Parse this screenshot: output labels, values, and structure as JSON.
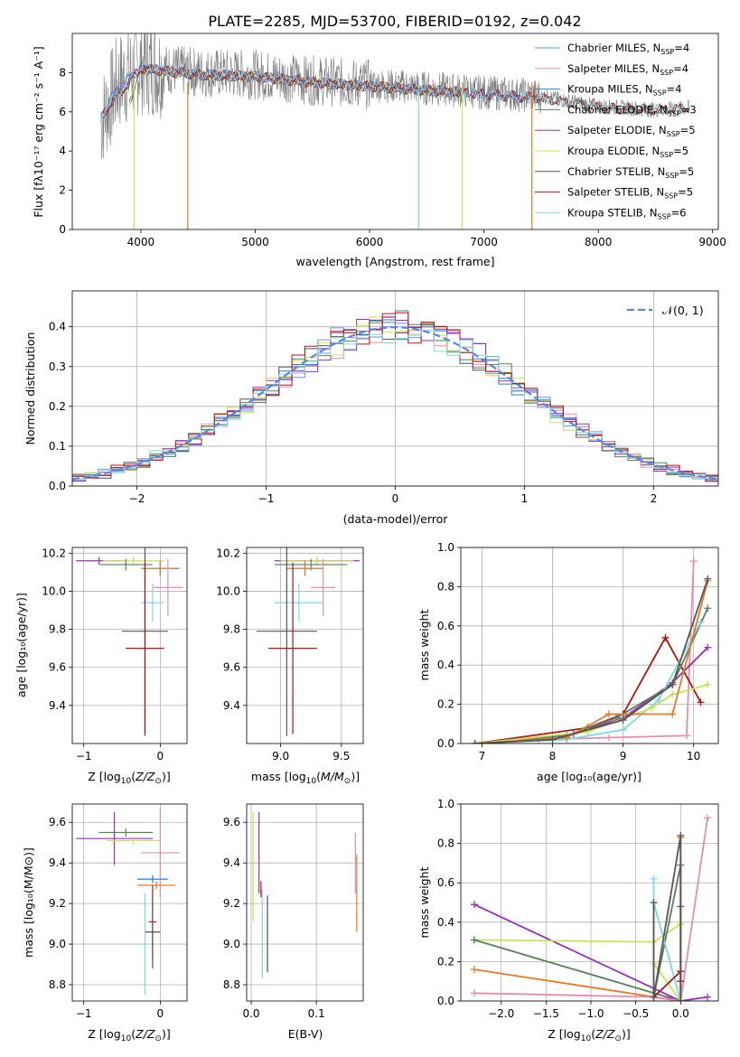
{
  "figure_title": "PLATE=2285, MJD=53700, FIBERID=0192, z=0.042",
  "colors": [
    "#6f8fe8",
    "#e68bb5",
    "#2e7ad0",
    "#5a7f5a",
    "#9a2fb5",
    "#c8e05a",
    "#555555",
    "#b01515",
    "#7fd6e8"
  ],
  "chart_data": [
    {
      "id": "spectrum",
      "type": "line",
      "xlabel": "wavelength [Angstrom, rest frame]",
      "ylabel": "Flux [f_λ 10^-17 erg cm^-2 s^-1 A^-1]",
      "xlim": [
        3400,
        9050
      ],
      "ylim": [
        0,
        10
      ],
      "xticks": [
        4000,
        5000,
        6000,
        7000,
        8000,
        9000
      ],
      "yticks": [
        0,
        2,
        4,
        6,
        8
      ],
      "legend_position": "upper right",
      "data_trace": {
        "x": [
          3650,
          3800,
          4000,
          4200,
          4500,
          5000,
          5500,
          6000,
          6500,
          7000,
          7500,
          8000,
          8500,
          8800
        ],
        "y": [
          5.5,
          7.5,
          8.4,
          8.2,
          8.0,
          7.9,
          7.6,
          7.4,
          7.2,
          7.0,
          6.8,
          6.3,
          6.1,
          6.2
        ]
      },
      "series": [
        {
          "name": "Chabrier MILES, N_SSP=4",
          "label_main": "Chabrier MILES, N",
          "n": "4",
          "color": "#6f8fe8",
          "x": [
            3650,
            3800,
            4000,
            4200,
            4500,
            5000,
            5500,
            6000,
            6500,
            7000,
            7400
          ],
          "y": [
            5.6,
            7.2,
            8.2,
            8.1,
            7.9,
            7.8,
            7.5,
            7.3,
            7.1,
            6.9,
            6.7
          ]
        },
        {
          "name": "Salpeter MILES, N_SSP=4",
          "label_main": "Salpeter MILES, N",
          "n": "4",
          "color": "#e68bb5",
          "x": [
            3650,
            3800,
            4000,
            4200,
            4500,
            5000,
            5500,
            6000,
            6500,
            7000,
            7400
          ],
          "y": [
            5.6,
            7.3,
            8.3,
            8.1,
            7.9,
            7.8,
            7.5,
            7.3,
            7.1,
            6.9,
            6.7
          ]
        },
        {
          "name": "Kroupa MILES, N_SSP=4",
          "label_main": "Kroupa MILES, N",
          "n": "4",
          "color": "#2e7ad0",
          "x": [
            3650,
            3800,
            4000,
            4200,
            4500,
            5000,
            5500,
            6000,
            6500,
            7000,
            7400
          ],
          "y": [
            5.7,
            7.3,
            8.2,
            8.1,
            7.9,
            7.8,
            7.5,
            7.3,
            7.1,
            6.9,
            6.7
          ]
        },
        {
          "name": "Chabrier ELODIE, N_SSP=3",
          "label_main": "Chabrier ELODIE, N",
          "n": "3",
          "color": "#5a7f5a",
          "x": [
            3900,
            4000,
            4200,
            4500,
            5000,
            5500,
            6000,
            6500,
            6800
          ],
          "y": [
            6.5,
            8.3,
            8.1,
            7.9,
            7.8,
            7.5,
            7.3,
            7.1,
            7.0
          ]
        },
        {
          "name": "Salpeter ELODIE, N_SSP=5",
          "label_main": "Salpeter ELODIE, N",
          "n": "5",
          "color": "#9a2fb5",
          "x": [
            3900,
            4000,
            4200,
            4500,
            5000,
            5500,
            6000,
            6500,
            6800
          ],
          "y": [
            6.5,
            8.2,
            8.1,
            7.9,
            7.8,
            7.5,
            7.3,
            7.1,
            7.0
          ]
        },
        {
          "name": "Kroupa ELODIE, N_SSP=5",
          "label_main": "Kroupa ELODIE, N",
          "n": "5",
          "color": "#c8e05a",
          "x": [
            3900,
            4000,
            4200,
            4500,
            5000,
            5500,
            6000,
            6500,
            6800
          ],
          "y": [
            6.5,
            8.2,
            8.0,
            7.9,
            7.8,
            7.5,
            7.3,
            7.1,
            7.0
          ]
        },
        {
          "name": "Chabrier STELIB, N_SSP=5",
          "label_main": "Chabrier STELIB, N",
          "n": "5",
          "color": "#555555",
          "x": [
            3650,
            4000,
            4500,
            5000,
            5500,
            6000,
            6500,
            7000,
            7500,
            8000,
            8500,
            8800
          ],
          "y": [
            5.8,
            8.2,
            7.9,
            7.8,
            7.5,
            7.3,
            7.1,
            6.9,
            6.7,
            6.2,
            6.1,
            6.2
          ]
        },
        {
          "name": "Salpeter STELIB, N_SSP=5",
          "label_main": "Salpeter STELIB, N",
          "n": "5",
          "color": "#b01515",
          "x": [
            3650,
            4000,
            4500,
            5000,
            5500,
            6000,
            6500,
            7000,
            7500,
            8000,
            8500,
            8800
          ],
          "y": [
            5.8,
            8.2,
            7.9,
            7.8,
            7.5,
            7.3,
            7.1,
            6.9,
            6.7,
            6.2,
            6.1,
            6.2
          ]
        },
        {
          "name": "Kroupa STELIB, N_SSP=6",
          "label_main": "Kroupa STELIB, N",
          "n": "6",
          "color": "#7fd6e8",
          "x": [
            3650,
            4000,
            4500,
            5000,
            5500,
            6000,
            6500,
            7000,
            7500,
            8000,
            8500,
            8800
          ],
          "y": [
            5.9,
            8.3,
            8.0,
            7.8,
            7.5,
            7.3,
            7.1,
            6.9,
            6.7,
            6.2,
            6.1,
            6.2
          ]
        }
      ]
    },
    {
      "id": "residual_hist",
      "type": "bar",
      "xlabel": "(data-model)/error",
      "ylabel": "Normed distribution",
      "xlim": [
        -2.5,
        2.5
      ],
      "ylim": [
        0,
        0.49
      ],
      "xticks": [
        -2,
        -1,
        0,
        1,
        2
      ],
      "yticks": [
        0.0,
        0.1,
        0.2,
        0.3,
        0.4
      ],
      "grid": true,
      "legend": "𝒩(0, 1)",
      "legend_position": "upper right",
      "reference_curve": "normal pdf, mean 0, sigma 1",
      "bin_width": 0.1
    },
    {
      "id": "age_vs_Z",
      "type": "scatter",
      "xlabel": "Z [log10(Z/Z⊙)]",
      "ylabel": "age [log10(age/yr)]",
      "xlim": [
        -1.15,
        0.35
      ],
      "ylim": [
        9.2,
        10.23
      ],
      "xticks": [
        -1,
        0
      ],
      "yticks": [
        9.4,
        9.6,
        9.8,
        10.0,
        10.2
      ],
      "points": [
        {
          "x": -0.8,
          "xerr": 0.3,
          "y": 10.16,
          "yerr": 0.02,
          "color": "#9a2fb5"
        },
        {
          "x": -0.35,
          "xerr": 0.4,
          "y": 10.16,
          "yerr": 0.02,
          "color": "#c8e05a"
        },
        {
          "x": -0.45,
          "xerr": 0.35,
          "y": 10.14,
          "yerr": 0.03,
          "color": "#5a7f5a"
        },
        {
          "x": 0.0,
          "xerr": 0.25,
          "y": 10.12,
          "yerr": 0.04,
          "color": "#2e7ad0"
        },
        {
          "x": 0.0,
          "xerr": 0.25,
          "y": 10.12,
          "yerr": 0.04,
          "color": "#e07b2a"
        },
        {
          "x": 0.1,
          "xerr": 0.2,
          "y": 10.02,
          "yerr": 0.15,
          "color": "#e68bb5"
        },
        {
          "x": -0.1,
          "xerr": 0.15,
          "y": 9.94,
          "yerr": 0.1,
          "color": "#7fd6e8"
        },
        {
          "x": -0.2,
          "xerr": 0.3,
          "y": 9.79,
          "yerr": 0.55,
          "color": "#555555"
        },
        {
          "x": -0.2,
          "xerr": 0.25,
          "y": 9.7,
          "yerr": 0.45,
          "color": "#b01515"
        }
      ]
    },
    {
      "id": "age_vs_mass",
      "type": "scatter",
      "xlabel": "mass [log10(M/M⊙)]",
      "ylabel": "",
      "xlim": [
        8.72,
        9.68
      ],
      "ylim": [
        9.2,
        10.23
      ],
      "xticks": [
        9.0,
        9.5
      ],
      "yticks": [
        9.4,
        9.6,
        9.8,
        10.0,
        10.2
      ],
      "points": [
        {
          "x": 9.3,
          "xerr": 0.35,
          "y": 10.16,
          "yerr": 0.02,
          "color": "#9a2fb5"
        },
        {
          "x": 9.3,
          "xerr": 0.3,
          "y": 10.16,
          "yerr": 0.02,
          "color": "#c8e05a"
        },
        {
          "x": 9.25,
          "xerr": 0.3,
          "y": 10.14,
          "yerr": 0.03,
          "color": "#5a7f5a"
        },
        {
          "x": 9.2,
          "xerr": 0.15,
          "y": 10.12,
          "yerr": 0.04,
          "color": "#2e7ad0"
        },
        {
          "x": 9.2,
          "xerr": 0.15,
          "y": 10.12,
          "yerr": 0.04,
          "color": "#e07b2a"
        },
        {
          "x": 9.35,
          "xerr": 0.1,
          "y": 10.02,
          "yerr": 0.15,
          "color": "#e68bb5"
        },
        {
          "x": 9.15,
          "xerr": 0.2,
          "y": 9.94,
          "yerr": 0.1,
          "color": "#7fd6e8"
        },
        {
          "x": 9.05,
          "xerr": 0.25,
          "y": 9.79,
          "yerr": 0.55,
          "color": "#555555"
        },
        {
          "x": 9.1,
          "xerr": 0.2,
          "y": 9.7,
          "yerr": 0.45,
          "color": "#b01515"
        }
      ]
    },
    {
      "id": "mass_weight_vs_age",
      "type": "line",
      "xlabel": "age [log10(age/yr)]",
      "ylabel": "mass weight",
      "xlim": [
        6.7,
        10.35
      ],
      "ylim": [
        0,
        1
      ],
      "xticks": [
        7,
        8,
        9,
        10
      ],
      "yticks": [
        0.0,
        0.2,
        0.4,
        0.6,
        0.8,
        1.0
      ],
      "grid": true,
      "series": [
        {
          "color": "#e68bb5",
          "x": [
            6.9,
            7.8,
            8.8,
            9.9,
            10.0
          ],
          "y": [
            0.0,
            0.02,
            0.03,
            0.04,
            0.93
          ]
        },
        {
          "color": "#b01515",
          "x": [
            6.9,
            8.5,
            9.0,
            9.6,
            10.1
          ],
          "y": [
            0.0,
            0.08,
            0.15,
            0.54,
            0.21
          ]
        },
        {
          "color": "#9a2fb5",
          "x": [
            6.9,
            8.3,
            9.0,
            9.7,
            10.2
          ],
          "y": [
            0.0,
            0.05,
            0.13,
            0.31,
            0.49
          ]
        },
        {
          "color": "#5a7f5a",
          "x": [
            6.9,
            8.2,
            8.9,
            9.7,
            10.2
          ],
          "y": [
            0.0,
            0.04,
            0.13,
            0.3,
            0.69
          ]
        },
        {
          "color": "#7fd6e8",
          "x": [
            6.9,
            8.2,
            9.0,
            9.5,
            10.1
          ],
          "y": [
            0.0,
            0.02,
            0.07,
            0.22,
            0.62
          ]
        },
        {
          "color": "#c8e05a",
          "x": [
            6.9,
            8.5,
            9.4,
            9.7,
            10.2
          ],
          "y": [
            0.0,
            0.06,
            0.18,
            0.25,
            0.3
          ]
        },
        {
          "color": "#e07b2a",
          "x": [
            6.9,
            8.2,
            8.8,
            9.7,
            10.2
          ],
          "y": [
            0.0,
            0.03,
            0.15,
            0.15,
            0.83
          ]
        },
        {
          "color": "#555555",
          "x": [
            6.9,
            8.0,
            9.0,
            9.7,
            10.2
          ],
          "y": [
            0.0,
            0.02,
            0.12,
            0.3,
            0.84
          ]
        }
      ]
    },
    {
      "id": "mass_vs_Z",
      "type": "scatter",
      "xlabel": "Z [log10(Z/Z⊙)]",
      "ylabel": "mass [log10(M/M⊙)]",
      "xlim": [
        -1.15,
        0.35
      ],
      "ylim": [
        8.72,
        9.69
      ],
      "xticks": [
        -1,
        0
      ],
      "yticks": [
        8.8,
        9.0,
        9.2,
        9.4,
        9.6
      ],
      "points": [
        {
          "x": -0.45,
          "xerr": 0.35,
          "y": 9.55,
          "yerr": 0.02,
          "color": "#5a7f5a"
        },
        {
          "x": -0.6,
          "xerr": 0.5,
          "y": 9.52,
          "yerr": 0.13,
          "color": "#9a2fb5"
        },
        {
          "x": -0.35,
          "xerr": 0.35,
          "y": 9.51,
          "yerr": 0.02,
          "color": "#c8e05a"
        },
        {
          "x": 0.0,
          "xerr": 0.25,
          "y": 9.45,
          "yerr": 0.22,
          "color": "#e68bb5"
        },
        {
          "x": -0.1,
          "xerr": 0.2,
          "y": 9.32,
          "yerr": 0.02,
          "color": "#2e7ad0"
        },
        {
          "x": -0.05,
          "xerr": 0.25,
          "y": 9.29,
          "yerr": 0.02,
          "color": "#e07b2a"
        },
        {
          "x": -0.1,
          "xerr": 0.05,
          "y": 9.11,
          "yerr": 0.18,
          "color": "#b01515"
        },
        {
          "x": -0.1,
          "xerr": 0.1,
          "y": 9.06,
          "yerr": 0.18,
          "color": "#555555"
        },
        {
          "x": -0.2,
          "xerr": 0.05,
          "y": 9.0,
          "yerr": 0.25,
          "color": "#7fd6e8"
        }
      ]
    },
    {
      "id": "mass_vs_ebv",
      "type": "scatter",
      "xlabel": "E(B-V)",
      "ylabel": "",
      "xlim": [
        -0.007,
        0.172
      ],
      "ylim": [
        8.72,
        9.69
      ],
      "xticks": [
        0.0,
        0.1
      ],
      "yticks": [
        8.8,
        9.0,
        9.2,
        9.4,
        9.6
      ],
      "points": [
        {
          "x": 0.003,
          "y": 9.38,
          "yerr": 0.27,
          "color": "#c8e05a"
        },
        {
          "x": 0.012,
          "y": 9.45,
          "yerr": 0.2,
          "color": "#9a2fb5"
        },
        {
          "x": 0.015,
          "y": 9.27,
          "yerr": 0.04,
          "color": "#b01515"
        },
        {
          "x": 0.017,
          "y": 9.05,
          "yerr": 0.22,
          "color": "#7fd6e8"
        },
        {
          "x": 0.025,
          "y": 9.05,
          "yerr": 0.19,
          "color": "#555555"
        },
        {
          "x": 0.16,
          "y": 9.4,
          "yerr": 0.15,
          "color": "#e68bb5"
        },
        {
          "x": 0.162,
          "y": 9.25,
          "yerr": 0.19,
          "color": "#e07b2a"
        }
      ]
    },
    {
      "id": "mass_weight_vs_Z",
      "type": "line",
      "xlabel": "Z [log10(Z/Z⊙)]",
      "ylabel": "mass weight",
      "xlim": [
        -2.45,
        0.42
      ],
      "ylim": [
        0,
        1
      ],
      "xticks": [
        -2.0,
        -1.5,
        -1.0,
        -0.5,
        0.0
      ],
      "yticks": [
        0.0,
        0.2,
        0.4,
        0.6,
        0.8,
        1.0
      ],
      "grid": true,
      "series": [
        {
          "color": "#9a2fb5",
          "x": [
            -2.3,
            0.0,
            0.0,
            0.0,
            0.3
          ],
          "y": [
            0.49,
            0.0,
            0.48,
            0.0,
            0.02
          ]
        },
        {
          "color": "#c8e05a",
          "x": [
            -2.3,
            -0.3,
            0.0,
            0.0,
            -0.3
          ],
          "y": [
            0.31,
            0.3,
            0.39,
            0.0,
            0.19
          ]
        },
        {
          "color": "#5a7f5a",
          "x": [
            -2.3,
            0.0,
            0.0,
            -0.3,
            0.0
          ],
          "y": [
            0.31,
            0.0,
            0.69,
            0.02,
            0.0
          ]
        },
        {
          "color": "#e07b2a",
          "x": [
            -2.3,
            0.0,
            0.0,
            0.0,
            -0.3
          ],
          "y": [
            0.16,
            0.0,
            0.83,
            0.0,
            0.02
          ]
        },
        {
          "color": "#e68bb5",
          "x": [
            -2.3,
            -0.3,
            0.0,
            0.3
          ],
          "y": [
            0.04,
            0.02,
            0.0,
            0.93
          ]
        },
        {
          "color": "#7fd6e8",
          "x": [
            -0.3,
            -0.3,
            -0.3,
            0.0
          ],
          "y": [
            0.62,
            0.02,
            0.5,
            0.0
          ]
        },
        {
          "color": "#b01515",
          "x": [
            -0.3,
            0.0,
            0.0
          ],
          "y": [
            0.02,
            0.15,
            0.1
          ]
        },
        {
          "color": "#555555",
          "x": [
            -0.3,
            -0.3,
            0.0,
            0.0
          ],
          "y": [
            0.5,
            0.02,
            0.84,
            0.0
          ]
        }
      ]
    }
  ]
}
